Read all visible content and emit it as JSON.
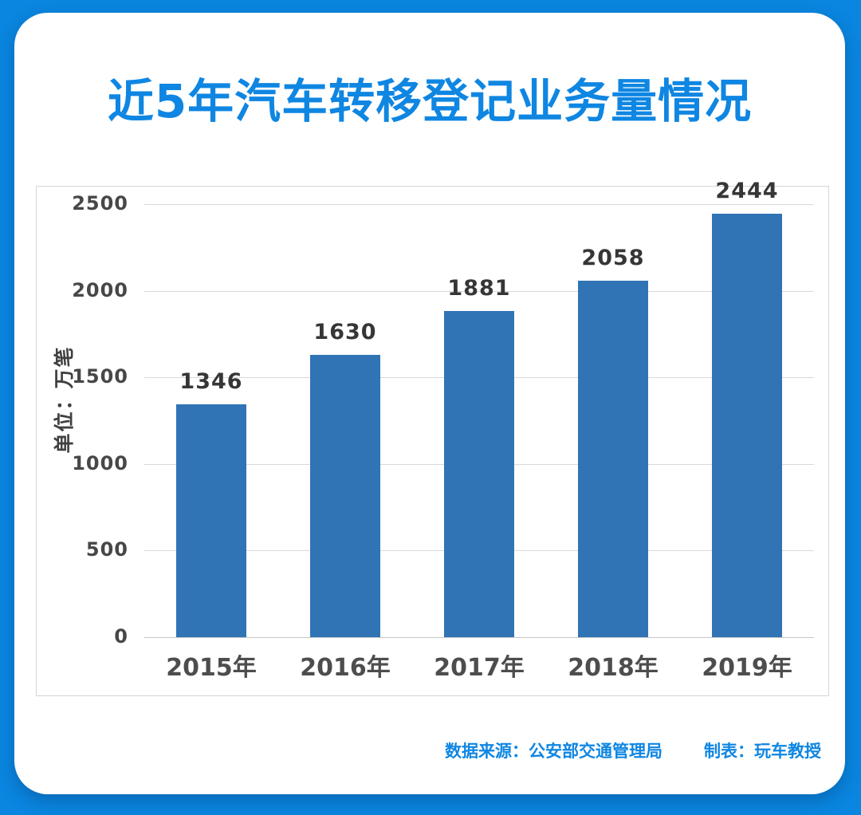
{
  "page": {
    "title": "近5年汽车转移登记业务量情况",
    "footer": {
      "source_label": "数据来源：公安部交通管理局",
      "author_label": "制表：玩车教授"
    }
  },
  "colors": {
    "background": "#0a86e0",
    "accent": "#0f86e2",
    "bar": "#3074b5",
    "grid": "#d9d9d9",
    "tick_label": "#474747",
    "value_label": "#363636",
    "x_label": "#4d4d4d"
  },
  "chart_data": {
    "type": "bar",
    "categories": [
      "2015年",
      "2016年",
      "2017年",
      "2018年",
      "2019年"
    ],
    "values": [
      1346,
      1630,
      1881,
      2058,
      2444
    ],
    "title": "近5年汽车转移登记业务量情况",
    "xlabel": "",
    "ylabel": "单位：万笔",
    "ylim": [
      0,
      2500
    ],
    "yticks": [
      0,
      500,
      1000,
      1500,
      2000,
      2500
    ],
    "grid": true,
    "legend": false,
    "bar_color": "#3074b5",
    "source": "数据来源：公安部交通管理局",
    "credit": "制表：玩车教授"
  }
}
